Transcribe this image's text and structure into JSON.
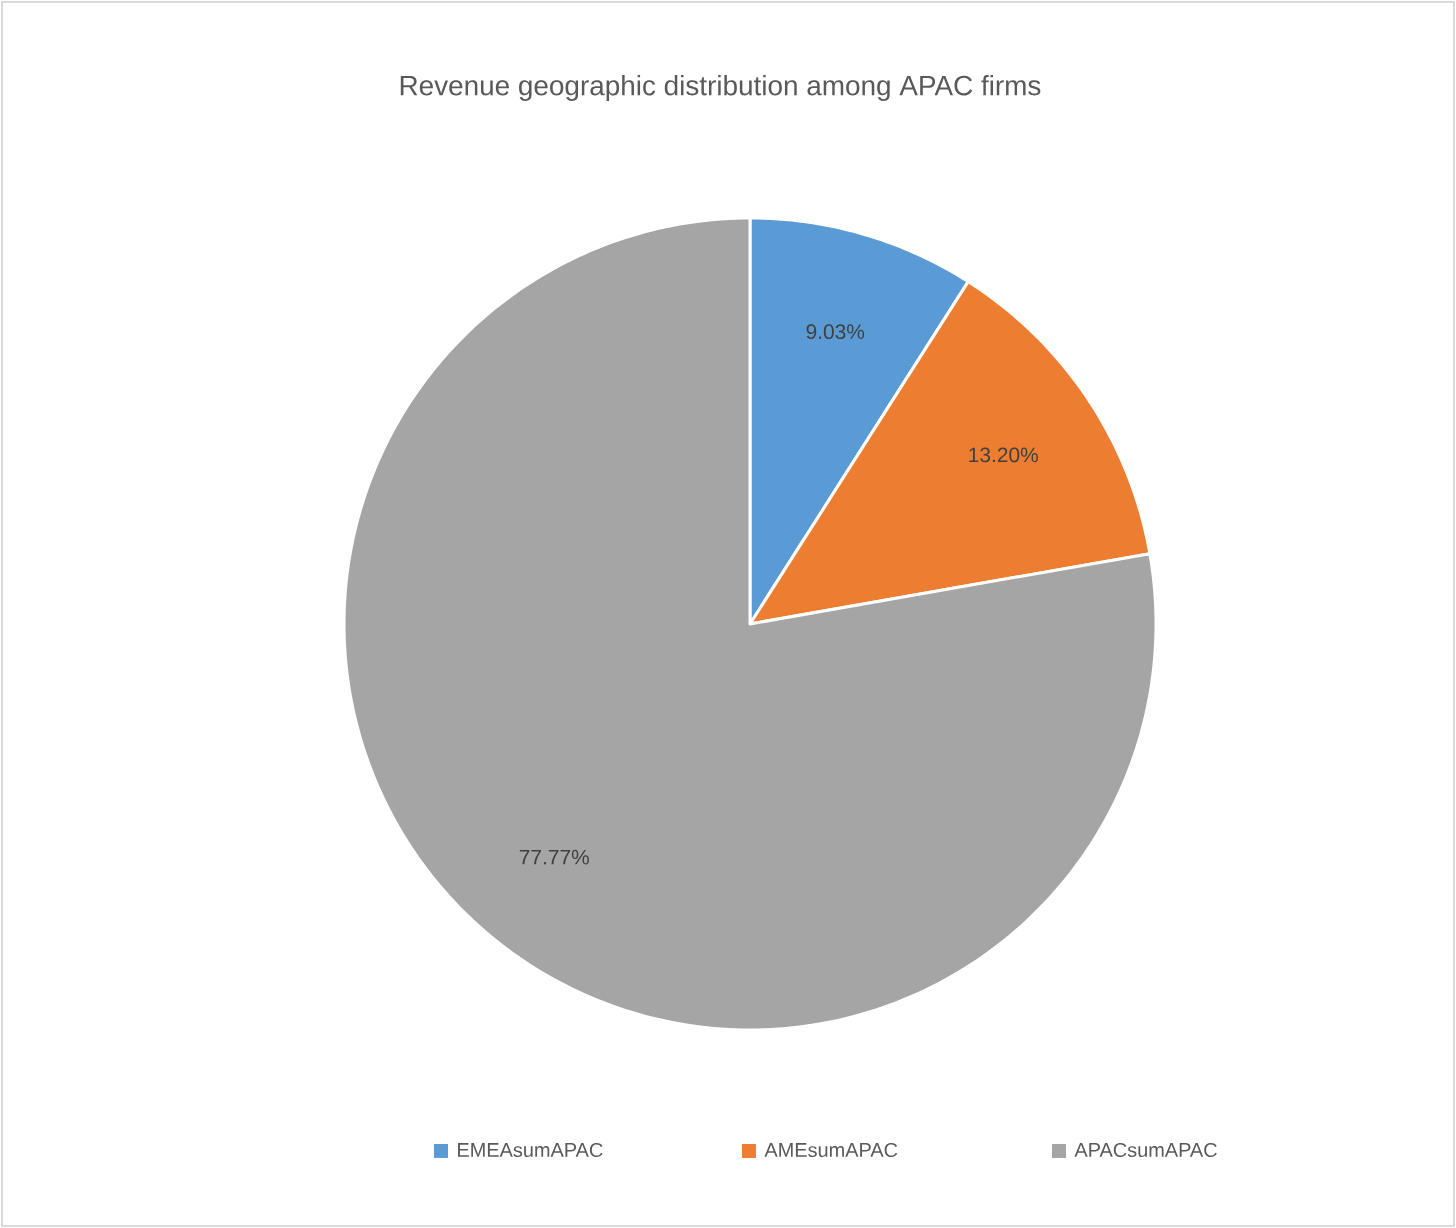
{
  "chart_data": {
    "type": "pie",
    "title": "Revenue geographic distribution among APAC firms",
    "categories": [
      "EMEAsumAPAC",
      "AMEsumAPAC",
      "APACsumAPAC"
    ],
    "values": [
      9.03,
      13.2,
      77.77
    ],
    "colors": [
      "#5b9bd5",
      "#ed7d31",
      "#a5a5a5"
    ],
    "value_labels": [
      "9.03%",
      "13.20%",
      "77.77%"
    ],
    "legend": "bottom"
  }
}
